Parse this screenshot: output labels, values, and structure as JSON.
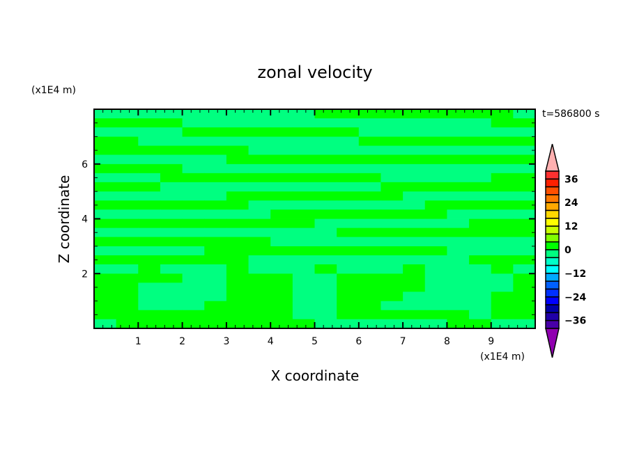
{
  "chart_data": {
    "type": "heatmap",
    "title": "zonal velocity",
    "xlabel": "X coordinate",
    "ylabel": "Z coordinate",
    "x_unit_label": "(x1E4 m)",
    "y_unit_label": "(x1E4 m)",
    "time_label": "t=586800 s",
    "xlim": [
      0,
      10
    ],
    "ylim": [
      0,
      8
    ],
    "x_ticks": [
      1,
      2,
      3,
      4,
      5,
      6,
      7,
      8,
      9
    ],
    "y_ticks": [
      2,
      4,
      6
    ],
    "x_minor_step": 0.2,
    "y_minor_step": 0.5,
    "colorbar": {
      "levels_min": -40,
      "levels_max": 40,
      "level_step": 4,
      "tick_labels": [
        "36",
        "24",
        "12",
        "0",
        "-12",
        "-24",
        "-36"
      ],
      "tick_values": [
        36,
        24,
        12,
        0,
        -12,
        -24,
        -36
      ],
      "over_color": "#ffb0b0",
      "under_color": "#9000b0",
      "colors_top_to_bottom": [
        "#ff3030",
        "#ff2000",
        "#ff5000",
        "#ff7800",
        "#ffa800",
        "#ffd800",
        "#ffff00",
        "#c8ff00",
        "#80ff00",
        "#00ff00",
        "#00ff80",
        "#00ffc8",
        "#00ffff",
        "#00a8ff",
        "#0060ff",
        "#0030ff",
        "#0000ff",
        "#0000a8",
        "#2000a8",
        "#4800a8"
      ]
    },
    "grid_x_centers": [
      0.25,
      0.75,
      1.25,
      1.75,
      2.25,
      2.75,
      3.25,
      3.75,
      4.25,
      4.75,
      5.25,
      5.75,
      6.25,
      6.75,
      7.25,
      7.75,
      8.25,
      8.75,
      9.25,
      9.75
    ],
    "grid_z_centers_top_to_bottom": [
      7.83,
      7.5,
      7.17,
      6.83,
      6.5,
      6.17,
      5.83,
      5.5,
      5.17,
      4.83,
      4.5,
      4.17,
      3.83,
      3.5,
      3.17,
      2.83,
      2.5,
      2.17,
      1.83,
      1.5,
      1.17,
      0.83,
      0.5,
      0.17
    ],
    "values": [
      [
        -2,
        -2,
        -2,
        -2,
        -2,
        -2,
        -2,
        -2,
        -2,
        -2,
        2,
        2,
        2,
        2,
        2,
        2,
        2,
        2,
        2,
        -2
      ],
      [
        2,
        2,
        2,
        2,
        -2,
        -2,
        -2,
        -2,
        -2,
        -2,
        -2,
        -2,
        -2,
        -2,
        -2,
        -2,
        -2,
        -2,
        2,
        2
      ],
      [
        -2,
        -2,
        -2,
        -2,
        2,
        2,
        2,
        2,
        2,
        2,
        2,
        2,
        -2,
        -2,
        -2,
        -2,
        -2,
        -2,
        -2,
        -2
      ],
      [
        2,
        2,
        -2,
        -2,
        -2,
        -2,
        -2,
        -2,
        -2,
        -2,
        -2,
        -2,
        2,
        2,
        2,
        2,
        2,
        2,
        2,
        2
      ],
      [
        2,
        2,
        2,
        2,
        2,
        2,
        2,
        -2,
        -2,
        -2,
        -2,
        -2,
        -2,
        -2,
        -2,
        -2,
        -2,
        -2,
        -2,
        -2
      ],
      [
        -2,
        -2,
        -2,
        -2,
        -2,
        -2,
        2,
        2,
        2,
        2,
        2,
        2,
        2,
        2,
        2,
        2,
        2,
        2,
        2,
        2
      ],
      [
        2,
        2,
        2,
        2,
        -2,
        -2,
        -2,
        -2,
        -2,
        -2,
        -2,
        -2,
        -2,
        -2,
        -2,
        -2,
        -2,
        -2,
        -2,
        -2
      ],
      [
        -2,
        -2,
        -2,
        2,
        2,
        2,
        2,
        2,
        2,
        2,
        2,
        2,
        2,
        -2,
        -2,
        -2,
        -2,
        -2,
        2,
        2
      ],
      [
        2,
        2,
        2,
        -2,
        -2,
        -2,
        -2,
        -2,
        -2,
        -2,
        -2,
        -2,
        -2,
        2,
        2,
        2,
        2,
        2,
        2,
        2
      ],
      [
        -2,
        -2,
        -2,
        -2,
        -2,
        -2,
        2,
        2,
        2,
        2,
        2,
        2,
        2,
        2,
        -2,
        -2,
        -2,
        -2,
        -2,
        -2
      ],
      [
        2,
        2,
        2,
        2,
        2,
        2,
        2,
        -2,
        -2,
        -2,
        -2,
        -2,
        -2,
        -2,
        -2,
        2,
        2,
        2,
        2,
        2
      ],
      [
        -2,
        -2,
        -2,
        -2,
        -2,
        -2,
        -2,
        -2,
        2,
        2,
        2,
        2,
        2,
        2,
        2,
        2,
        -2,
        -2,
        -2,
        -2
      ],
      [
        2,
        2,
        2,
        2,
        2,
        2,
        2,
        2,
        2,
        2,
        -2,
        -2,
        -2,
        -2,
        -2,
        -2,
        -2,
        2,
        2,
        2
      ],
      [
        -2,
        -2,
        -2,
        -2,
        -2,
        -2,
        -2,
        -2,
        -2,
        -2,
        -2,
        2,
        2,
        2,
        2,
        2,
        2,
        2,
        2,
        2
      ],
      [
        2,
        2,
        2,
        2,
        2,
        2,
        2,
        2,
        -2,
        -2,
        -2,
        -2,
        -2,
        -2,
        -2,
        -2,
        -2,
        -2,
        -2,
        -2
      ],
      [
        -2,
        -2,
        -2,
        -2,
        -2,
        2,
        2,
        2,
        2,
        2,
        2,
        2,
        2,
        2,
        2,
        2,
        -2,
        -2,
        -2,
        -2
      ],
      [
        2,
        2,
        2,
        2,
        2,
        2,
        2,
        -2,
        -2,
        -2,
        -2,
        -2,
        -2,
        -2,
        -2,
        -2,
        -2,
        2,
        2,
        2
      ],
      [
        -2,
        -2,
        2,
        -2,
        -2,
        -2,
        2,
        -2,
        -2,
        -2,
        2,
        -2,
        -2,
        -2,
        2,
        -2,
        -2,
        -2,
        2,
        -2
      ],
      [
        2,
        2,
        2,
        2,
        -2,
        -2,
        2,
        2,
        2,
        -2,
        -2,
        2,
        2,
        2,
        2,
        -2,
        -2,
        -2,
        -2,
        2
      ],
      [
        2,
        2,
        -2,
        -2,
        -2,
        -2,
        2,
        2,
        2,
        -2,
        -2,
        2,
        2,
        2,
        2,
        -2,
        -2,
        -2,
        -2,
        2
      ],
      [
        2,
        2,
        -2,
        -2,
        -2,
        -2,
        2,
        2,
        2,
        -2,
        -2,
        2,
        2,
        2,
        -2,
        -2,
        -2,
        -2,
        2,
        2
      ],
      [
        2,
        2,
        -2,
        -2,
        -2,
        2,
        2,
        2,
        2,
        -2,
        -2,
        2,
        2,
        -2,
        -2,
        -2,
        -2,
        -2,
        2,
        2
      ],
      [
        2,
        2,
        2,
        2,
        2,
        2,
        2,
        2,
        2,
        -2,
        -2,
        2,
        2,
        2,
        2,
        2,
        2,
        -2,
        2,
        2
      ],
      [
        -2,
        2,
        2,
        2,
        2,
        2,
        2,
        2,
        2,
        2,
        -2,
        -2,
        -2,
        -2,
        -2,
        -2,
        2,
        2,
        -2,
        -2
      ]
    ]
  }
}
